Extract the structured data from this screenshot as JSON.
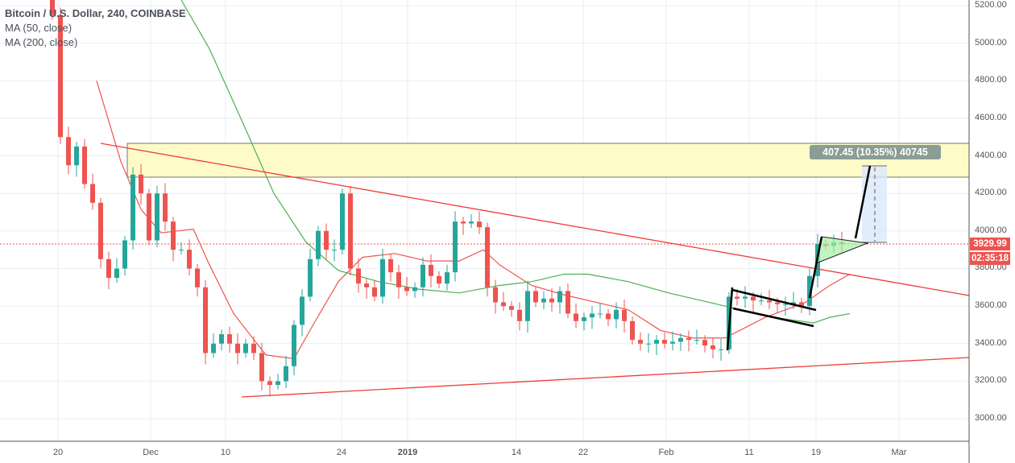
{
  "legend": {
    "title": "Bitcoin / U.S. Dollar, 240, COINBASE",
    "ma1": "MA (50, close)",
    "ma2": "MA (200, close)"
  },
  "last_price": "3929.99",
  "countdown": "02:35:18",
  "measure_label": "407.45 (10.35%) 40745",
  "colors": {
    "up": "#26a69a",
    "down": "#ef5350",
    "ma50": "#ef5350",
    "ma200": "#4caf50",
    "zone": "#fffbc8"
  },
  "chart_data": {
    "type": "candlestick",
    "title": "Bitcoin / U.S. Dollar, 240, COINBASE",
    "ylim": [
      2880,
      5230
    ],
    "yticks": [
      "5200.00",
      "5000.00",
      "4800.00",
      "4600.00",
      "4400.00",
      "4200.00",
      "4000.00",
      "3800.00",
      "3600.00",
      "3400.00",
      "3200.00",
      "3000.00"
    ],
    "xticks": [
      "20",
      "Dec",
      "10",
      "24",
      "2019",
      "14",
      "22",
      "Feb",
      "11",
      "19",
      "Mar"
    ],
    "closes": [
      5150,
      4500,
      4350,
      4450,
      4250,
      4150,
      3850,
      3750,
      3800,
      3950,
      4300,
      4200,
      3950,
      4200,
      4050,
      3900,
      3900,
      3800,
      3700,
      3350,
      3400,
      3450,
      3400,
      3350,
      3400,
      3350,
      3200,
      3180,
      3200,
      3280,
      3500,
      3650,
      3850,
      4000,
      3900,
      3900,
      4200,
      3800,
      3720,
      3700,
      3650,
      3850,
      3780,
      3700,
      3680,
      3700,
      3820,
      3760,
      3720,
      3780,
      4050,
      4040,
      4050,
      4020,
      3700,
      3620,
      3600,
      3580,
      3520,
      3680,
      3620,
      3640,
      3620,
      3680,
      3560,
      3520,
      3540,
      3560,
      3560,
      3530,
      3580,
      3520,
      3420,
      3400,
      3400,
      3420,
      3400,
      3410,
      3430,
      3420,
      3420,
      3390,
      3370,
      3370,
      3650,
      3640,
      3650,
      3630,
      3630,
      3620,
      3610,
      3610,
      3620,
      3600,
      3760,
      3930,
      3920,
      3940,
      3930
    ],
    "ma50": [
      [
        5.5,
        4800
      ],
      [
        8.5,
        4370
      ],
      [
        11,
        4115
      ],
      [
        13.5,
        3990
      ],
      [
        17.5,
        4010
      ],
      [
        19.5,
        3820
      ],
      [
        22.5,
        3560
      ],
      [
        26.5,
        3340
      ],
      [
        30,
        3320
      ],
      [
        32.5,
        3510
      ],
      [
        35.5,
        3730
      ],
      [
        38.5,
        3860
      ],
      [
        42.5,
        3880
      ],
      [
        46.5,
        3840
      ],
      [
        50.5,
        3840
      ],
      [
        53.5,
        3900
      ],
      [
        55.5,
        3820
      ],
      [
        59.5,
        3710
      ],
      [
        63.5,
        3660
      ],
      [
        67.5,
        3620
      ],
      [
        71.5,
        3580
      ],
      [
        75.5,
        3470
      ],
      [
        79.5,
        3430
      ],
      [
        83.5,
        3430
      ],
      [
        88.5,
        3540
      ],
      [
        93.5,
        3620
      ],
      [
        96.5,
        3710
      ],
      [
        99,
        3770
      ]
    ],
    "ma200": [
      [
        16,
        5230
      ],
      [
        19.5,
        4970
      ],
      [
        23.5,
        4590
      ],
      [
        27.5,
        4200
      ],
      [
        31.5,
        3940
      ],
      [
        35.5,
        3790
      ],
      [
        40.5,
        3730
      ],
      [
        45.5,
        3690
      ],
      [
        50.5,
        3670
      ],
      [
        55.5,
        3710
      ],
      [
        59.5,
        3730
      ],
      [
        63.5,
        3770
      ],
      [
        66.5,
        3770
      ],
      [
        71.5,
        3730
      ],
      [
        76.5,
        3670
      ],
      [
        81.5,
        3620
      ],
      [
        85.5,
        3580
      ],
      [
        89.5,
        3540
      ],
      [
        94.5,
        3510
      ],
      [
        96.5,
        3540
      ],
      [
        99,
        3560
      ]
    ]
  }
}
